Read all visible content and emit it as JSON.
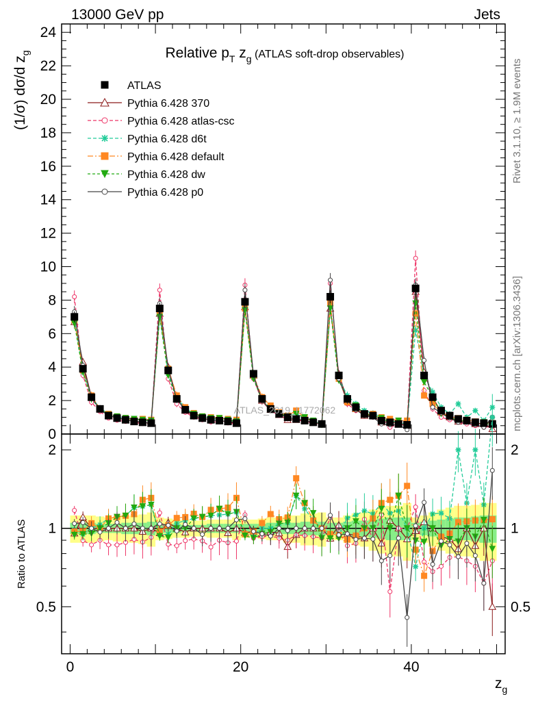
{
  "header": {
    "left": "13000 GeV pp",
    "right": "Jets"
  },
  "side_labels": {
    "rivet": "Rivet 3.1.10, ≥ 1.9M events",
    "mcplots": "mcplots.cern.ch [arXiv:1306.3436]"
  },
  "watermark": "ATLAS_2019_I1772062",
  "colors": {
    "ATLAS": "#000000",
    "Pythia 6.428 370": "#8b1a1a",
    "Pythia 6.428 atlas-csc": "#ee3366",
    "Pythia 6.428 d6t": "#22cc99",
    "Pythia 6.428 default": "#ff8822",
    "Pythia 6.428 dw": "#22aa11",
    "Pythia 6.428 p0": "#444444",
    "band_yellow": "#ffff88",
    "band_green": "#88ee88"
  },
  "chart_data": {
    "type": "scatter",
    "title_main": "Relative p",
    "title_sub": "T",
    "title_var": " z",
    "title_var_sub": "g",
    "title_suffix": " (ATLAS soft-drop observables)",
    "ylabel": "(1/σ) dσ/d z",
    "ylabel_sub": "g",
    "xlabel": "z",
    "xlabel_sub": "g",
    "ratio_ylabel": "Ratio to ATLAS",
    "xlim": [
      -1,
      51
    ],
    "ylim": [
      0,
      24.5
    ],
    "ratio_ylim": [
      0.33,
      2.3
    ],
    "xticks": [
      "0",
      "20",
      "40"
    ],
    "yticks": [
      "0",
      "2",
      "4",
      "6",
      "8",
      "10",
      "12",
      "14",
      "16",
      "18",
      "20",
      "22",
      "24"
    ],
    "ratio_yticks": [
      "0.5",
      "1",
      "2"
    ],
    "legend_position": "top-left",
    "legend": [
      "ATLAS",
      "Pythia 6.428 370",
      "Pythia 6.428 atlas-csc",
      "Pythia 6.428 d6t",
      "Pythia 6.428 default",
      "Pythia 6.428 dw",
      "Pythia 6.428 p0"
    ],
    "x": [
      0.5,
      1.5,
      2.5,
      3.5,
      4.5,
      5.5,
      6.5,
      7.5,
      8.5,
      9.5,
      10.5,
      11.5,
      12.5,
      13.5,
      14.5,
      15.5,
      16.5,
      17.5,
      18.5,
      19.5,
      20.5,
      21.5,
      22.5,
      23.5,
      24.5,
      25.5,
      26.5,
      27.5,
      28.5,
      29.5,
      30.5,
      31.5,
      32.5,
      33.5,
      34.5,
      35.5,
      36.5,
      37.5,
      38.5,
      39.5,
      40.5,
      41.5,
      42.5,
      43.5,
      44.5,
      45.5,
      46.5,
      47.5,
      48.5,
      49.5
    ],
    "series": [
      {
        "name": "ATLAS",
        "values": [
          7.0,
          3.9,
          2.2,
          1.5,
          1.1,
          0.95,
          0.85,
          0.75,
          0.7,
          0.65,
          7.5,
          3.8,
          2.1,
          1.45,
          1.1,
          0.95,
          0.85,
          0.8,
          0.75,
          0.65,
          7.9,
          3.6,
          2.1,
          1.5,
          1.2,
          1.0,
          0.9,
          0.8,
          0.7,
          0.6,
          8.2,
          3.5,
          2.1,
          1.6,
          1.2,
          1.1,
          0.8,
          0.7,
          0.6,
          0.55,
          8.7,
          3.5,
          2.2,
          1.4,
          1.1,
          0.9,
          0.8,
          0.7,
          0.65,
          0.6
        ]
      },
      {
        "name": "Pythia 6.428 370",
        "values": [
          6.7,
          4.3,
          2.2,
          1.5,
          1.1,
          0.95,
          0.85,
          0.75,
          0.68,
          0.65,
          7.2,
          4.0,
          2.1,
          1.4,
          1.1,
          0.95,
          0.85,
          0.8,
          0.72,
          0.65,
          7.6,
          3.5,
          2.0,
          1.45,
          1.15,
          0.85,
          0.85,
          0.8,
          0.7,
          0.6,
          7.5,
          3.6,
          2.0,
          1.5,
          1.1,
          1.1,
          0.7,
          0.75,
          0.6,
          0.5,
          8.5,
          3.7,
          2.2,
          1.3,
          1.0,
          0.75,
          0.8,
          0.6,
          0.65,
          0.3
        ]
      },
      {
        "name": "Pythia 6.428 atlas-csc",
        "values": [
          8.2,
          3.5,
          1.9,
          1.35,
          0.95,
          0.82,
          0.75,
          0.68,
          0.62,
          0.6,
          8.6,
          3.3,
          1.8,
          1.3,
          1.0,
          0.85,
          0.72,
          0.72,
          0.66,
          0.58,
          8.9,
          3.3,
          1.95,
          1.4,
          1.1,
          0.9,
          0.85,
          0.75,
          0.65,
          0.55,
          9.0,
          3.4,
          1.8,
          1.4,
          1.3,
          1.0,
          0.9,
          0.4,
          0.6,
          0.55,
          10.5,
          2.6,
          1.5,
          1.0,
          0.85,
          0.7,
          0.6,
          0.5,
          0.4,
          0.45
        ]
      },
      {
        "name": "Pythia 6.428 d6t",
        "values": [
          6.9,
          3.7,
          2.2,
          1.55,
          1.2,
          1.05,
          0.95,
          0.9,
          0.85,
          0.8,
          7.1,
          3.6,
          2.2,
          1.55,
          1.2,
          1.05,
          0.95,
          0.9,
          0.85,
          0.75,
          7.5,
          3.4,
          2.1,
          1.5,
          1.25,
          1.05,
          1.2,
          0.95,
          0.75,
          0.6,
          7.8,
          3.3,
          2.3,
          1.8,
          1.4,
          1.25,
          1.0,
          0.8,
          0.7,
          0.55,
          6.2,
          3.5,
          2.5,
          1.6,
          1.2,
          1.8,
          1.0,
          1.4,
          0.8,
          1.6
        ]
      },
      {
        "name": "Pythia 6.428 default",
        "values": [
          6.8,
          3.8,
          2.3,
          1.5,
          1.2,
          1.05,
          0.95,
          0.85,
          0.9,
          0.85,
          7.3,
          3.9,
          2.3,
          1.6,
          1.25,
          1.05,
          1.0,
          0.95,
          0.9,
          0.85,
          7.5,
          3.5,
          2.2,
          1.7,
          1.3,
          1.1,
          1.4,
          1.0,
          0.75,
          0.6,
          7.8,
          3.3,
          1.9,
          1.5,
          1.2,
          1.2,
          1.0,
          0.9,
          0.8,
          0.8,
          7.2,
          2.3,
          1.8,
          1.3,
          1.05,
          0.95,
          0.85,
          0.75,
          0.7,
          0.65
        ]
      },
      {
        "name": "Pythia 6.428 dw",
        "values": [
          6.6,
          3.7,
          2.1,
          1.5,
          1.15,
          1.05,
          0.95,
          0.9,
          0.85,
          0.8,
          7.0,
          3.5,
          2.1,
          1.45,
          1.2,
          1.05,
          0.95,
          0.95,
          0.85,
          0.75,
          7.4,
          3.3,
          2.0,
          1.45,
          1.25,
          1.05,
          1.2,
          1.0,
          0.8,
          0.55,
          7.5,
          3.2,
          2.1,
          1.7,
          1.2,
          1.1,
          0.95,
          0.7,
          0.8,
          0.55,
          7.8,
          3.1,
          2.2,
          1.2,
          1.0,
          0.8,
          0.8,
          0.65,
          0.7,
          0.5
        ]
      },
      {
        "name": "Pythia 6.428 p0",
        "values": [
          7.3,
          4.1,
          2.2,
          1.45,
          1.1,
          1.0,
          0.85,
          0.78,
          0.7,
          0.65,
          7.8,
          3.9,
          2.05,
          1.5,
          1.1,
          0.9,
          0.85,
          0.8,
          0.75,
          0.7,
          8.6,
          3.5,
          2.0,
          1.4,
          1.2,
          0.98,
          0.9,
          0.8,
          0.7,
          0.6,
          9.2,
          3.3,
          2.0,
          1.45,
          1.1,
          1.0,
          0.6,
          0.55,
          0.55,
          0.25,
          8.9,
          4.4,
          1.6,
          1.25,
          0.95,
          0.7,
          0.7,
          0.55,
          0.4,
          1.0
        ]
      }
    ],
    "ratio_band_yellow_halfwidth": [
      0.12,
      0.12,
      0.12,
      0.11,
      0.1,
      0.11,
      0.12,
      0.12,
      0.13,
      0.15,
      0.1,
      0.09,
      0.08,
      0.08,
      0.07,
      0.07,
      0.08,
      0.08,
      0.08,
      0.1,
      0.08,
      0.08,
      0.09,
      0.1,
      0.1,
      0.12,
      0.12,
      0.14,
      0.14,
      0.15,
      0.1,
      0.1,
      0.12,
      0.14,
      0.15,
      0.18,
      0.2,
      0.22,
      0.22,
      0.25,
      0.1,
      0.12,
      0.15,
      0.18,
      0.2,
      0.22,
      0.22,
      0.23,
      0.25,
      0.25
    ],
    "ratio_band_green_halfwidth": [
      0.05,
      0.05,
      0.05,
      0.04,
      0.04,
      0.04,
      0.05,
      0.05,
      0.05,
      0.06,
      0.04,
      0.04,
      0.04,
      0.03,
      0.03,
      0.03,
      0.04,
      0.04,
      0.04,
      0.04,
      0.04,
      0.04,
      0.04,
      0.05,
      0.05,
      0.05,
      0.05,
      0.06,
      0.06,
      0.06,
      0.05,
      0.05,
      0.06,
      0.07,
      0.07,
      0.08,
      0.09,
      0.1,
      0.1,
      0.1,
      0.05,
      0.06,
      0.07,
      0.08,
      0.09,
      0.1,
      0.1,
      0.11,
      0.12,
      0.12
    ]
  }
}
